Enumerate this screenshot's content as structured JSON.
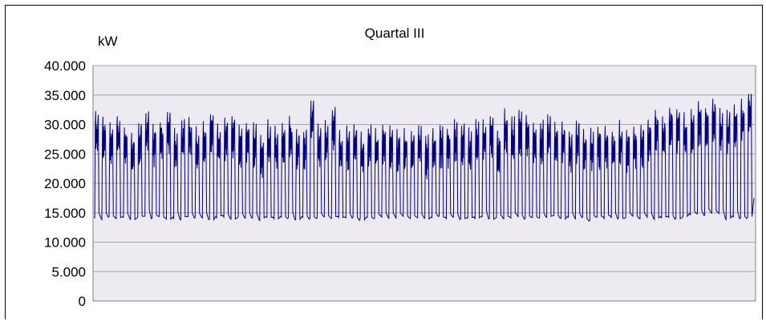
{
  "chart_data": {
    "type": "line",
    "title": "Quartal III",
    "ylabel": "kW",
    "xlabel": "",
    "ylim": [
      0,
      40000
    ],
    "yticks": [
      0,
      5000,
      10000,
      15000,
      20000,
      25000,
      30000,
      35000,
      40000
    ],
    "ytick_labels": [
      "0",
      "5.000",
      "10.000",
      "15.000",
      "20.000",
      "25.000",
      "30.000",
      "35.000",
      "40.000"
    ],
    "grid": true,
    "legend": "none",
    "series": [
      {
        "color": "#000080",
        "day_cycles": 92,
        "daily_low": [
          14000,
          13800,
          14200,
          13900,
          14100,
          13700,
          14000,
          14300,
          13800,
          14100,
          13900,
          14000,
          13600,
          14200,
          13900,
          14100,
          13800,
          14000,
          14200,
          13900,
          14100,
          13800,
          14000,
          13500,
          14100,
          13900,
          14200,
          14000,
          13800,
          14100,
          13900,
          14000,
          14200,
          13800,
          14100,
          13900,
          14000,
          13700,
          14200,
          13900,
          14100,
          13800,
          14000,
          14300,
          13900,
          14100,
          13800,
          14000,
          14200,
          13900,
          14100,
          13800,
          14000,
          13900,
          14200,
          13700,
          14100,
          13900,
          14000,
          14200,
          13800,
          14100,
          13900,
          14000,
          14300,
          13800,
          14100,
          13900,
          14000,
          13400,
          14200,
          13900,
          14100,
          13800,
          14000,
          14200,
          13900,
          14100,
          13800,
          14000,
          14200,
          13900,
          14100,
          14600,
          14800,
          14500,
          14900,
          14700,
          13800,
          14100,
          13900,
          14000
        ],
        "daily_high": [
          32500,
          31500,
          30500,
          32000,
          30000,
          29000,
          31000,
          32500,
          30500,
          31000,
          32500,
          29500,
          31000,
          32000,
          30000,
          31000,
          32500,
          30500,
          31500,
          32000,
          30000,
          31000,
          30500,
          28500,
          31000,
          30000,
          30500,
          31500,
          30000,
          29500,
          34500,
          30500,
          31000,
          33000,
          29500,
          30000,
          30500,
          29000,
          30000,
          29500,
          30500,
          30000,
          29500,
          30000,
          29000,
          30000,
          28500,
          30000,
          30500,
          30000,
          31000,
          30500,
          29500,
          31000,
          31500,
          32000,
          29500,
          33000,
          31500,
          32500,
          32000,
          30500,
          31000,
          32000,
          30500,
          31000,
          29500,
          31000,
          30000,
          29500,
          30000,
          30500,
          29500,
          31000,
          29500,
          30000,
          30500,
          31500,
          33000,
          32000,
          33500,
          33000,
          32500,
          33000,
          34000,
          33500,
          35000,
          33000,
          32500,
          34000,
          34500,
          35800
        ],
        "end_value": 17500
      }
    ]
  }
}
